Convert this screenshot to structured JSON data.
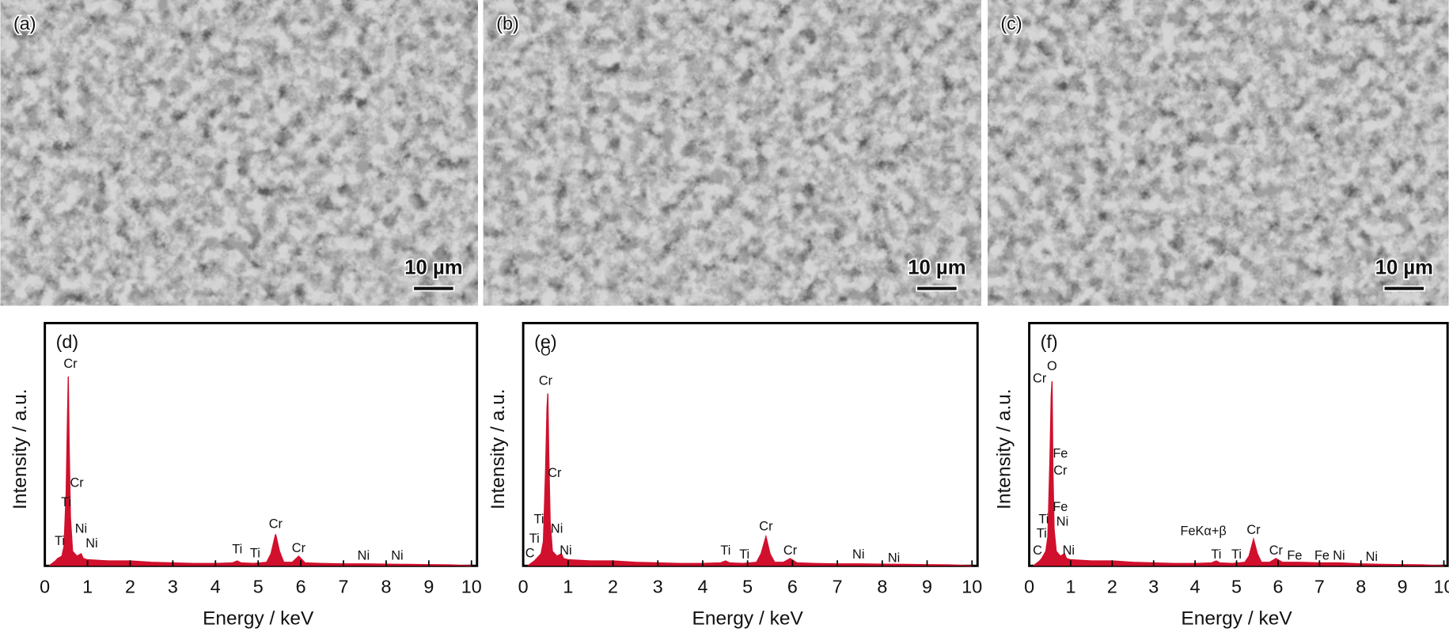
{
  "images": [
    {
      "label": "(a)",
      "scale": "10 µm"
    },
    {
      "label": "(b)",
      "scale": "10 µm"
    },
    {
      "label": "(c)",
      "scale": "10 µm"
    }
  ],
  "chart_data": [
    {
      "type": "area",
      "label": "(d)",
      "xlabel": "Energy / keV",
      "ylabel": "Intensity / a.u.",
      "color": "#d0102c",
      "x": [
        0.1,
        0.25,
        0.3,
        0.4,
        0.45,
        0.5,
        0.53,
        0.55,
        0.57,
        0.6,
        0.65,
        0.75,
        0.85,
        0.9,
        1.0,
        1.5,
        2.0,
        2.5,
        3.0,
        3.5,
        4.0,
        4.4,
        4.51,
        4.6,
        4.9,
        5.2,
        5.3,
        5.41,
        5.5,
        5.6,
        5.8,
        5.95,
        6.1,
        6.5,
        7,
        7.5,
        8,
        8.5,
        9,
        9.5,
        10
      ],
      "values": [
        0,
        2,
        3,
        4,
        8,
        30,
        60,
        78,
        50,
        20,
        6,
        4,
        5,
        3,
        2.5,
        2,
        2,
        1.5,
        1.2,
        1,
        1,
        1.2,
        2,
        1.2,
        1,
        1.5,
        5,
        13,
        6,
        1.5,
        1.5,
        4,
        1.2,
        1,
        0.8,
        0.8,
        0.7,
        0.6,
        0.5,
        0.4,
        0
      ],
      "xlim": [
        0,
        10
      ],
      "ylim": [
        0,
        100
      ],
      "xticks": [
        0,
        1,
        2,
        3,
        4,
        5,
        6,
        7,
        8,
        9,
        10
      ],
      "annotations": [
        {
          "text": "Cr",
          "x": 0.6,
          "y": 83
        },
        {
          "text": "Cr",
          "x": 0.75,
          "y": 34
        },
        {
          "text": "Ti",
          "x": 0.5,
          "y": 26
        },
        {
          "text": "Ni",
          "x": 0.85,
          "y": 15
        },
        {
          "text": "Ni",
          "x": 1.1,
          "y": 9
        },
        {
          "text": "Ti",
          "x": 0.35,
          "y": 10
        },
        {
          "text": "Ti",
          "x": 4.51,
          "y": 6.5
        },
        {
          "text": "Ti",
          "x": 4.93,
          "y": 5
        },
        {
          "text": "Cr",
          "x": 5.41,
          "y": 17
        },
        {
          "text": "Cr",
          "x": 5.95,
          "y": 7
        },
        {
          "text": "Ni",
          "x": 7.47,
          "y": 4
        },
        {
          "text": "Ni",
          "x": 8.26,
          "y": 4
        }
      ]
    },
    {
      "type": "area",
      "label": "(e)",
      "xlabel": "Energy / keV",
      "ylabel": "Intensity / a.u.",
      "color": "#d0102c",
      "x": [
        0.1,
        0.25,
        0.3,
        0.4,
        0.45,
        0.5,
        0.53,
        0.55,
        0.57,
        0.6,
        0.65,
        0.75,
        0.85,
        0.9,
        1.0,
        1.5,
        2.0,
        2.5,
        3.0,
        3.5,
        4.0,
        4.4,
        4.51,
        4.6,
        4.9,
        5.2,
        5.3,
        5.41,
        5.5,
        5.6,
        5.8,
        5.95,
        6.1,
        6.5,
        7,
        7.5,
        8,
        8.5,
        9,
        9.5,
        10
      ],
      "values": [
        0,
        2,
        3,
        5,
        10,
        40,
        65,
        71,
        45,
        18,
        6,
        4,
        5,
        3,
        2.5,
        2,
        2,
        1.5,
        1.2,
        1,
        1,
        1.2,
        2,
        1.2,
        1,
        1.5,
        5,
        12,
        5,
        1.5,
        1.5,
        3,
        1.2,
        1,
        0.8,
        0.8,
        0.7,
        0.6,
        0.5,
        0.4,
        0
      ],
      "xlim": [
        0,
        10
      ],
      "ylim": [
        0,
        100
      ],
      "xticks": [
        0,
        1,
        2,
        3,
        4,
        5,
        6,
        7,
        8,
        9,
        10
      ],
      "annotations": [
        {
          "text": "O",
          "x": 0.5,
          "y": 88
        },
        {
          "text": "Cr",
          "x": 0.5,
          "y": 76
        },
        {
          "text": "Cr",
          "x": 0.7,
          "y": 38
        },
        {
          "text": "Ti",
          "x": 0.35,
          "y": 19
        },
        {
          "text": "Ni",
          "x": 0.75,
          "y": 15
        },
        {
          "text": "Ti",
          "x": 0.25,
          "y": 11
        },
        {
          "text": "C",
          "x": 0.15,
          "y": 5
        },
        {
          "text": "Ni",
          "x": 0.95,
          "y": 6
        },
        {
          "text": "Ti",
          "x": 4.51,
          "y": 6
        },
        {
          "text": "Ti",
          "x": 4.93,
          "y": 4.5
        },
        {
          "text": "Cr",
          "x": 5.41,
          "y": 16
        },
        {
          "text": "Cr",
          "x": 5.95,
          "y": 6
        },
        {
          "text": "Ni",
          "x": 7.47,
          "y": 4.5
        },
        {
          "text": "Ni",
          "x": 8.26,
          "y": 3
        }
      ]
    },
    {
      "type": "area",
      "label": "(f)",
      "xlabel": "Energy / keV",
      "ylabel": "Intensity / a.u.",
      "color": "#d0102c",
      "x": [
        0.1,
        0.25,
        0.3,
        0.4,
        0.45,
        0.5,
        0.53,
        0.55,
        0.57,
        0.6,
        0.65,
        0.75,
        0.85,
        0.9,
        1.0,
        1.5,
        2.0,
        2.5,
        3.0,
        3.5,
        4.0,
        4.4,
        4.51,
        4.6,
        4.9,
        5.2,
        5.3,
        5.41,
        5.5,
        5.6,
        5.8,
        5.95,
        6.1,
        6.5,
        7,
        7.5,
        8,
        8.5,
        9,
        9.5,
        10
      ],
      "values": [
        0,
        2,
        3,
        6,
        12,
        45,
        70,
        76,
        40,
        15,
        6,
        4,
        5,
        3,
        2.5,
        2,
        2,
        1.5,
        1.2,
        1,
        1,
        1.2,
        2,
        1.2,
        1,
        1.5,
        4,
        11,
        5,
        1.5,
        1.5,
        3,
        1.5,
        1.5,
        1.2,
        1.2,
        0.8,
        0.6,
        0.5,
        0.4,
        0
      ],
      "xlim": [
        0,
        10
      ],
      "ylim": [
        0,
        100
      ],
      "xticks": [
        0,
        1,
        2,
        3,
        4,
        5,
        6,
        7,
        8,
        9,
        10
      ],
      "annotations": [
        {
          "text": "Cr",
          "x": 0.25,
          "y": 77
        },
        {
          "text": "O",
          "x": 0.55,
          "y": 82
        },
        {
          "text": "Fe",
          "x": 0.75,
          "y": 46
        },
        {
          "text": "Cr",
          "x": 0.75,
          "y": 39
        },
        {
          "text": "Fe",
          "x": 0.75,
          "y": 24
        },
        {
          "text": "Ni",
          "x": 0.8,
          "y": 18
        },
        {
          "text": "Ti",
          "x": 0.35,
          "y": 19
        },
        {
          "text": "Ti",
          "x": 0.3,
          "y": 13
        },
        {
          "text": "C",
          "x": 0.2,
          "y": 6
        },
        {
          "text": "Ni",
          "x": 0.95,
          "y": 6
        },
        {
          "text": "FeKα+β",
          "x": 4.2,
          "y": 14
        },
        {
          "text": "Ti",
          "x": 4.51,
          "y": 4.5
        },
        {
          "text": "Ti",
          "x": 5.0,
          "y": 4.5
        },
        {
          "text": "Cr",
          "x": 5.41,
          "y": 14.5
        },
        {
          "text": "Cr",
          "x": 5.95,
          "y": 6
        },
        {
          "text": "Fe",
          "x": 6.4,
          "y": 4
        },
        {
          "text": "Fe",
          "x": 7.06,
          "y": 4
        },
        {
          "text": "Ni",
          "x": 7.47,
          "y": 4
        },
        {
          "text": "Ni",
          "x": 8.26,
          "y": 3.5
        }
      ]
    }
  ]
}
